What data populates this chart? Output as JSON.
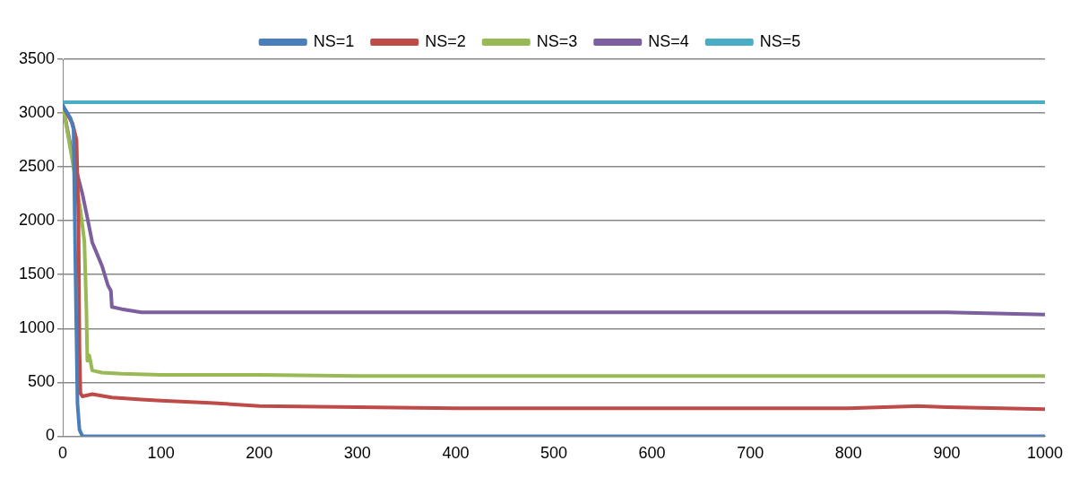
{
  "chart_data": {
    "type": "line",
    "xlim": [
      0,
      1000
    ],
    "xticks": [
      0,
      100,
      200,
      300,
      400,
      500,
      600,
      700,
      800,
      900,
      1000
    ],
    "ylim": [
      0,
      3500
    ],
    "yticks": [
      0,
      500,
      1000,
      1500,
      2000,
      2500,
      3000,
      3500
    ],
    "grid": "y",
    "legend": "top",
    "marker": "none",
    "line_style": "solid",
    "series": [
      {
        "name": "NS=1",
        "color": "#4a7ebb",
        "x": [
          0,
          8,
          11,
          13,
          15,
          17,
          20,
          100,
          300,
          500,
          700,
          1000
        ],
        "values": [
          3070,
          2950,
          2850,
          1500,
          300,
          60,
          0,
          0,
          0,
          0,
          0,
          0
        ]
      },
      {
        "name": "NS=2",
        "color": "#be4b48",
        "x": [
          0,
          10,
          14,
          16,
          17,
          18,
          20,
          30,
          50,
          80,
          100,
          150,
          200,
          300,
          400,
          500,
          600,
          700,
          800,
          870,
          900,
          1000
        ],
        "values": [
          3070,
          2900,
          2750,
          2000,
          800,
          400,
          370,
          390,
          360,
          340,
          330,
          310,
          280,
          270,
          260,
          260,
          260,
          260,
          260,
          280,
          270,
          250
        ]
      },
      {
        "name": "NS=3",
        "color": "#98b954",
        "x": [
          0,
          10,
          18,
          22,
          24,
          25,
          27,
          30,
          40,
          60,
          100,
          200,
          300,
          400,
          500,
          600,
          700,
          800,
          900,
          1000
        ],
        "values": [
          3070,
          2550,
          2100,
          1810,
          1200,
          700,
          750,
          610,
          590,
          580,
          570,
          570,
          560,
          560,
          560,
          560,
          560,
          560,
          560,
          560
        ]
      },
      {
        "name": "NS=4",
        "color": "#7d5fa0",
        "x": [
          0,
          10,
          20,
          25,
          30,
          40,
          46,
          49,
          50,
          60,
          80,
          100,
          200,
          300,
          400,
          500,
          600,
          700,
          800,
          900,
          1000
        ],
        "values": [
          3070,
          2600,
          2250,
          2030,
          1800,
          1580,
          1400,
          1350,
          1200,
          1180,
          1150,
          1150,
          1150,
          1150,
          1150,
          1150,
          1150,
          1150,
          1150,
          1150,
          1130
        ]
      },
      {
        "name": "NS=5",
        "color": "#4bacc6",
        "x": [
          0,
          100,
          200,
          300,
          400,
          500,
          600,
          700,
          800,
          900,
          1000
        ],
        "values": [
          3100,
          3100,
          3100,
          3100,
          3100,
          3100,
          3100,
          3100,
          3100,
          3100,
          3100
        ]
      }
    ]
  }
}
